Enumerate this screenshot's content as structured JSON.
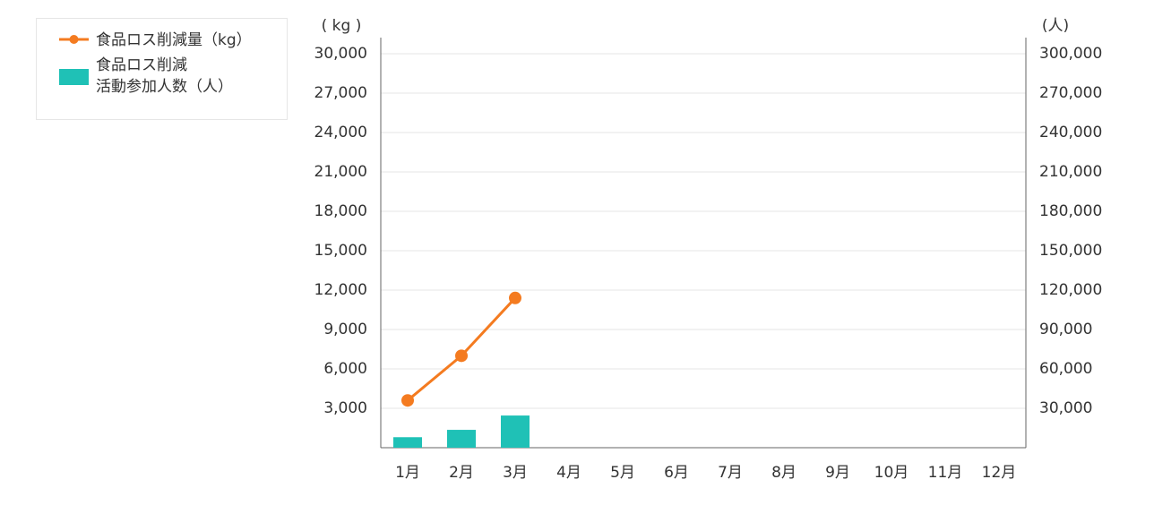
{
  "chart_data": {
    "type": "bar-line",
    "y_label": "( kg )",
    "y2_label": "(人)",
    "categories": [
      "1月",
      "2月",
      "3月",
      "4月",
      "5月",
      "6月",
      "7月",
      "8月",
      "9月",
      "10月",
      "11月",
      "12月"
    ],
    "series": [
      {
        "name": "食品ロス削減量（kg）",
        "type": "line",
        "color": "#f47b20",
        "values": [
          3600,
          7000,
          11400,
          null,
          null,
          null,
          null,
          null,
          null,
          null,
          null,
          null
        ]
      },
      {
        "name": "食品ロス削減\n活動参加人数（人）",
        "type": "bar",
        "axis": "y2",
        "color": "#1fc1b6",
        "values": [
          8000,
          13600,
          24500,
          null,
          null,
          null,
          null,
          null,
          null,
          null,
          null,
          null
        ]
      }
    ],
    "ylim": [
      0,
      30000
    ],
    "yticks": [
      {
        "value": 3000,
        "label": "3,000"
      },
      {
        "value": 6000,
        "label": "6,000"
      },
      {
        "value": 9000,
        "label": "9,000"
      },
      {
        "value": 12000,
        "label": "12,000"
      },
      {
        "value": 15000,
        "label": "15,000"
      },
      {
        "value": 18000,
        "label": "18,000"
      },
      {
        "value": 21000,
        "label": "21,000"
      },
      {
        "value": 24000,
        "label": "24,000"
      },
      {
        "value": 27000,
        "label": "27,000"
      },
      {
        "value": 30000,
        "label": "30,000"
      }
    ],
    "y2lim": [
      0,
      300000
    ],
    "y2ticks": [
      {
        "value": 30000,
        "label": "30,000"
      },
      {
        "value": 60000,
        "label": "60,000"
      },
      {
        "value": 90000,
        "label": "90,000"
      },
      {
        "value": 120000,
        "label": "120,000"
      },
      {
        "value": 150000,
        "label": "150,000"
      },
      {
        "value": 180000,
        "label": "180,000"
      },
      {
        "value": 210000,
        "label": "210,000"
      },
      {
        "value": 240000,
        "label": "240,000"
      },
      {
        "value": 270000,
        "label": "270,000"
      },
      {
        "value": 300000,
        "label": "300,000"
      }
    ],
    "grid": true
  }
}
